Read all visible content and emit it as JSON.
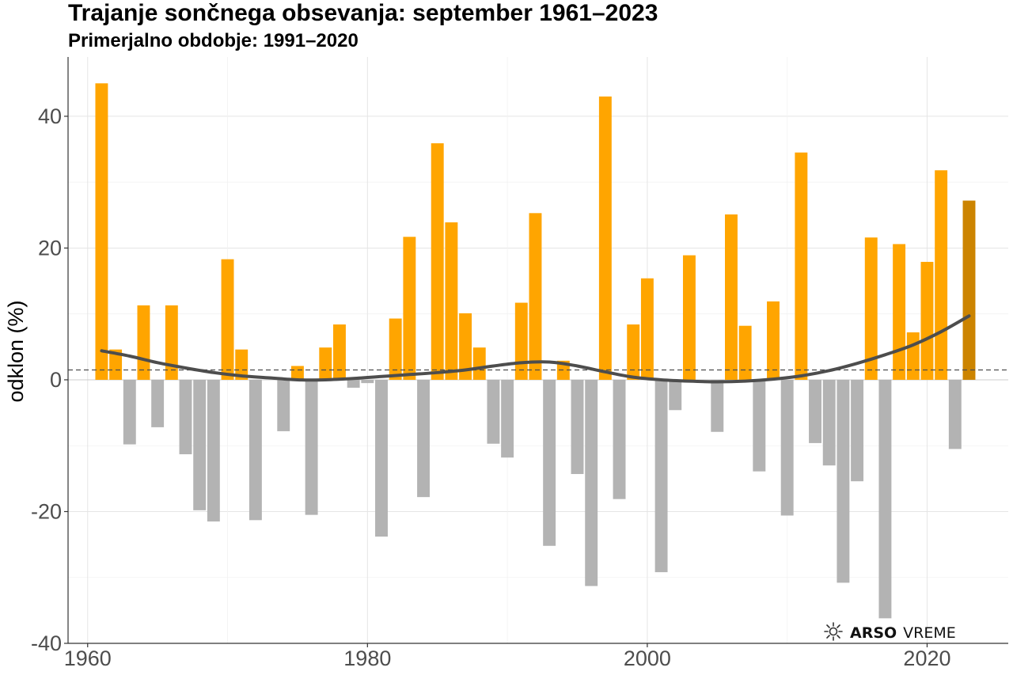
{
  "title": "Trajanje sončnega obsevanja: september 1961–2023",
  "subtitle": "Primerjalno obdobje: 1991–2020",
  "brand": {
    "icon": "sun-cloud-icon",
    "name_bold": "ARSO",
    "name_regular": "VREME"
  },
  "colors": {
    "positive": "#FFA500",
    "positive_last": "#CC8400",
    "negative": "#B3B3B3",
    "trend": "#4D4D4D",
    "reference": "#4D4D4D"
  },
  "chart_data": {
    "type": "bar",
    "title": "Trajanje sončnega obsevanja: september 1961–2023",
    "subtitle": "Primerjalno obdobje: 1991–2020",
    "xlabel": "",
    "ylabel": "odklon (%)",
    "xlim": [
      1958.6,
      2025.8
    ],
    "ylim": [
      -40,
      49
    ],
    "x_ticks": [
      1960,
      1980,
      2000,
      2020
    ],
    "y_ticks": [
      -40,
      -20,
      0,
      20,
      40
    ],
    "grid": true,
    "legend": "none",
    "reference_line": 1.5,
    "x": [
      1961,
      1962,
      1963,
      1964,
      1965,
      1966,
      1967,
      1968,
      1969,
      1970,
      1971,
      1972,
      1973,
      1974,
      1975,
      1976,
      1977,
      1978,
      1979,
      1980,
      1981,
      1982,
      1983,
      1984,
      1985,
      1986,
      1987,
      1988,
      1989,
      1990,
      1991,
      1992,
      1993,
      1994,
      1995,
      1996,
      1997,
      1998,
      1999,
      2000,
      2001,
      2002,
      2003,
      2004,
      2005,
      2006,
      2007,
      2008,
      2009,
      2010,
      2011,
      2012,
      2013,
      2014,
      2015,
      2016,
      2017,
      2018,
      2019,
      2020,
      2021,
      2022,
      2023
    ],
    "values": [
      45,
      4.6,
      -9.8,
      11.3,
      -7.2,
      11.3,
      -11.3,
      -19.8,
      -21.5,
      18.3,
      4.6,
      -21.3,
      0,
      -7.8,
      2.1,
      -20.5,
      4.9,
      8.4,
      -1.2,
      -0.5,
      -23.8,
      9.3,
      21.7,
      -17.8,
      35.9,
      23.9,
      10.1,
      4.9,
      -9.7,
      -11.8,
      11.7,
      25.3,
      -25.2,
      2.9,
      -14.3,
      -31.3,
      43,
      -18.1,
      8.4,
      15.4,
      -29.2,
      -4.6,
      18.9,
      0,
      -7.9,
      25.1,
      8.2,
      -13.9,
      11.9,
      -20.6,
      34.5,
      -9.6,
      -13,
      -30.8,
      -15.4,
      21.6,
      -36.2,
      20.6,
      7.2,
      17.9,
      31.8,
      -10.5,
      27.2
    ],
    "trend": {
      "x": [
        1961,
        1963,
        1965,
        1967,
        1969,
        1971,
        1973,
        1975,
        1977,
        1979,
        1981,
        1983,
        1985,
        1987,
        1989,
        1991,
        1993,
        1995,
        1997,
        1999,
        2001,
        2003,
        2005,
        2007,
        2009,
        2011,
        2013,
        2015,
        2017,
        2019,
        2021,
        2023
      ],
      "y": [
        4.4,
        3.6,
        2.6,
        1.8,
        1.1,
        0.6,
        0.3,
        0,
        0,
        0.2,
        0.5,
        0.8,
        1.1,
        1.5,
        2.1,
        2.6,
        2.7,
        2.1,
        1.2,
        0.4,
        0,
        -0.2,
        -0.3,
        -0.2,
        0.1,
        0.6,
        1.4,
        2.5,
        3.8,
        5.3,
        7.3,
        9.7
      ]
    }
  }
}
